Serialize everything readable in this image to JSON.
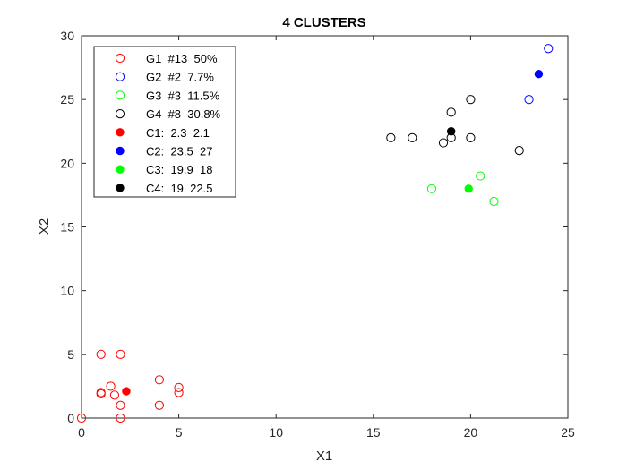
{
  "chart_data": {
    "type": "scatter",
    "title": "4 CLUSTERS",
    "xlabel": "X1",
    "ylabel": "X2",
    "xlim": [
      0,
      25
    ],
    "ylim": [
      0,
      30
    ],
    "xticks": [
      0,
      5,
      10,
      15,
      20,
      25
    ],
    "yticks": [
      0,
      5,
      10,
      15,
      20,
      25,
      30
    ],
    "grid": false,
    "legend_position": "top-left",
    "series": [
      {
        "name": "G1  #13  50%",
        "marker": "open-circle",
        "color": "#ff0000",
        "x": [
          0,
          1,
          1,
          1,
          1.5,
          1.7,
          2,
          2,
          2,
          4,
          4,
          5,
          5
        ],
        "y": [
          0,
          5,
          1.9,
          2.0,
          2.5,
          1.8,
          5,
          1,
          0,
          3,
          1,
          2.4,
          2
        ]
      },
      {
        "name": "G2  #2  7.7%",
        "marker": "open-circle",
        "color": "#0000ff",
        "x": [
          23,
          24
        ],
        "y": [
          25,
          29
        ]
      },
      {
        "name": "G3  #3  11.5%",
        "marker": "open-circle",
        "color": "#00ff00",
        "x": [
          18,
          20.5,
          21.2
        ],
        "y": [
          18,
          19,
          17
        ]
      },
      {
        "name": "G4  #8  30.8%",
        "marker": "open-circle",
        "color": "#000000",
        "x": [
          15.9,
          17,
          18.6,
          19,
          19,
          20,
          20,
          22.5
        ],
        "y": [
          22,
          22,
          21.6,
          22,
          24,
          25,
          22,
          21
        ]
      },
      {
        "name": "C1:  2.3  2.1",
        "marker": "filled-circle",
        "color": "#ff0000",
        "x": [
          2.3
        ],
        "y": [
          2.1
        ]
      },
      {
        "name": "C2:  23.5  27",
        "marker": "filled-circle",
        "color": "#0000ff",
        "x": [
          23.5
        ],
        "y": [
          27
        ]
      },
      {
        "name": "C3:  19.9  18",
        "marker": "filled-circle",
        "color": "#00ff00",
        "x": [
          19.9
        ],
        "y": [
          18
        ]
      },
      {
        "name": "C4:  19  22.5",
        "marker": "filled-circle",
        "color": "#000000",
        "x": [
          19
        ],
        "y": [
          22.5
        ]
      }
    ]
  }
}
